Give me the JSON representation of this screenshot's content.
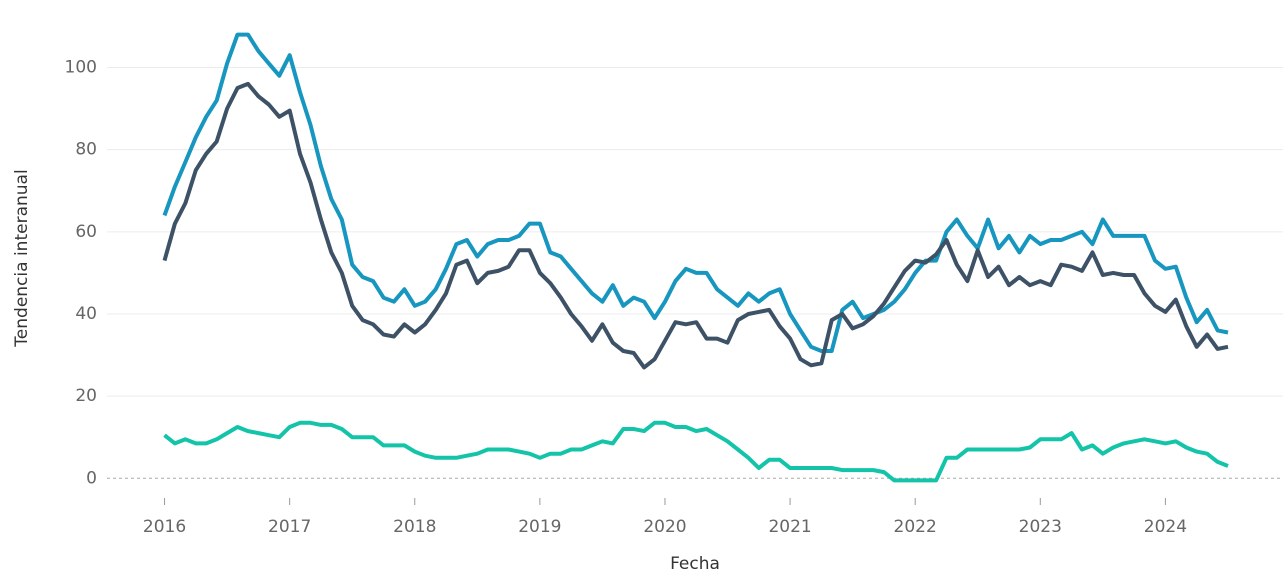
{
  "chart_data": {
    "type": "line",
    "xlabel": "Fecha",
    "ylabel": "Tendencia interanual",
    "x": [
      2016,
      2016.083,
      2016.167,
      2016.25,
      2016.333,
      2016.417,
      2016.5,
      2016.583,
      2016.667,
      2016.75,
      2016.833,
      2016.917,
      2017,
      2017.083,
      2017.167,
      2017.25,
      2017.333,
      2017.417,
      2017.5,
      2017.583,
      2017.667,
      2017.75,
      2017.833,
      2017.917,
      2018,
      2018.083,
      2018.167,
      2018.25,
      2018.333,
      2018.417,
      2018.5,
      2018.583,
      2018.667,
      2018.75,
      2018.833,
      2018.917,
      2019,
      2019.083,
      2019.167,
      2019.25,
      2019.333,
      2019.417,
      2019.5,
      2019.583,
      2019.667,
      2019.75,
      2019.833,
      2019.917,
      2020,
      2020.083,
      2020.167,
      2020.25,
      2020.333,
      2020.417,
      2020.5,
      2020.583,
      2020.667,
      2020.75,
      2020.833,
      2020.917,
      2021,
      2021.083,
      2021.167,
      2021.25,
      2021.333,
      2021.417,
      2021.5,
      2021.583,
      2021.667,
      2021.75,
      2021.833,
      2021.917,
      2022,
      2022.083,
      2022.167,
      2022.25,
      2022.333,
      2022.417,
      2022.5,
      2022.583,
      2022.667,
      2022.75,
      2022.833,
      2022.917,
      2023,
      2023.083,
      2023.167,
      2023.25,
      2023.333,
      2023.417,
      2023.5,
      2023.583,
      2023.667,
      2023.75,
      2023.833,
      2023.917,
      2024,
      2024.083,
      2024.167,
      2024.25,
      2024.333,
      2024.417,
      2024.5
    ],
    "series": [
      {
        "color": "#1796bf",
        "values": [
          64,
          71,
          77,
          83,
          88,
          92,
          101,
          108,
          108,
          104,
          101,
          98,
          103,
          94,
          86,
          76,
          68,
          63,
          52,
          49,
          48,
          44,
          43,
          46,
          42,
          43,
          46,
          51,
          57,
          58,
          54,
          57,
          58,
          58,
          59,
          62,
          62,
          55,
          54,
          51,
          48,
          45,
          43,
          47,
          42,
          44,
          43,
          39,
          43,
          48,
          51,
          50,
          50,
          46,
          44,
          42,
          45,
          43,
          45,
          46,
          40,
          36,
          32,
          31,
          31,
          41,
          43,
          39,
          40,
          41,
          43,
          46,
          50,
          53,
          53,
          60,
          63,
          59,
          56,
          63,
          56,
          59,
          55,
          59,
          57,
          58,
          58,
          59,
          60,
          57,
          63,
          59,
          59,
          59,
          59,
          53,
          51,
          51.5,
          44,
          38,
          41,
          36,
          35.5
        ]
      },
      {
        "color": "#3d5266",
        "values": [
          53,
          62,
          67,
          75,
          79,
          82,
          90,
          95,
          96,
          93,
          91,
          88,
          89.5,
          79,
          72,
          63,
          55,
          50,
          42,
          38.5,
          37.5,
          35,
          34.5,
          37.5,
          35.5,
          37.5,
          41,
          45,
          52,
          53,
          47.5,
          50,
          50.5,
          51.5,
          55.5,
          55.5,
          50,
          47.5,
          44,
          40,
          37,
          33.5,
          37.5,
          33,
          31,
          30.5,
          27,
          29,
          33.5,
          38,
          37.5,
          38,
          34,
          34,
          33,
          38.5,
          40,
          40.5,
          41,
          37,
          34,
          29,
          27.5,
          28,
          38.5,
          40,
          36.5,
          37.5,
          39.5,
          42.5,
          46.5,
          50.5,
          53,
          52.5,
          54.5,
          58,
          52,
          48,
          55.5,
          49,
          51.5,
          47,
          49,
          47,
          48,
          47,
          52,
          51.5,
          50.5,
          55,
          49.5,
          50,
          49.5,
          49.5,
          45,
          42,
          40.5,
          43.5,
          37,
          32,
          35,
          31.5,
          32
        ]
      },
      {
        "color": "#13c4a9",
        "values": [
          10.5,
          8.5,
          9.5,
          8.5,
          8.5,
          9.5,
          11,
          12.5,
          11.5,
          11,
          10.5,
          10,
          12.5,
          13.5,
          13.5,
          13,
          13,
          12,
          10,
          10,
          10,
          8,
          8,
          8,
          6.5,
          5.5,
          5,
          5,
          5,
          5.5,
          6,
          7,
          7,
          7,
          6.5,
          6,
          5,
          6,
          6,
          7,
          7,
          8,
          9,
          8.5,
          12,
          12,
          11.5,
          13.5,
          13.5,
          12.5,
          12.5,
          11.5,
          12,
          10.5,
          9,
          7,
          5,
          2.5,
          4.5,
          4.5,
          2.5,
          2.5,
          2.5,
          2.5,
          2.5,
          2,
          2,
          2,
          2,
          1.5,
          -0.5,
          -0.5,
          -0.5,
          -0.5,
          -0.5,
          5,
          5,
          7,
          7,
          7,
          7,
          7,
          7,
          7.5,
          9.5,
          9.5,
          9.5,
          11,
          7,
          8,
          6,
          7.5,
          8.5,
          9,
          9.5,
          9,
          8.5,
          9,
          7.5,
          6.5,
          6,
          4,
          3
        ]
      }
    ],
    "xlim": [
      2015.54,
      2024.94
    ],
    "xticks": [
      2016,
      2017,
      2018,
      2019,
      2020,
      2021,
      2022,
      2023,
      2024
    ],
    "ylim": [
      -6.5,
      114
    ],
    "yticks": [
      0,
      20,
      40,
      60,
      80,
      100
    ],
    "grid": true,
    "zero_line": true
  }
}
